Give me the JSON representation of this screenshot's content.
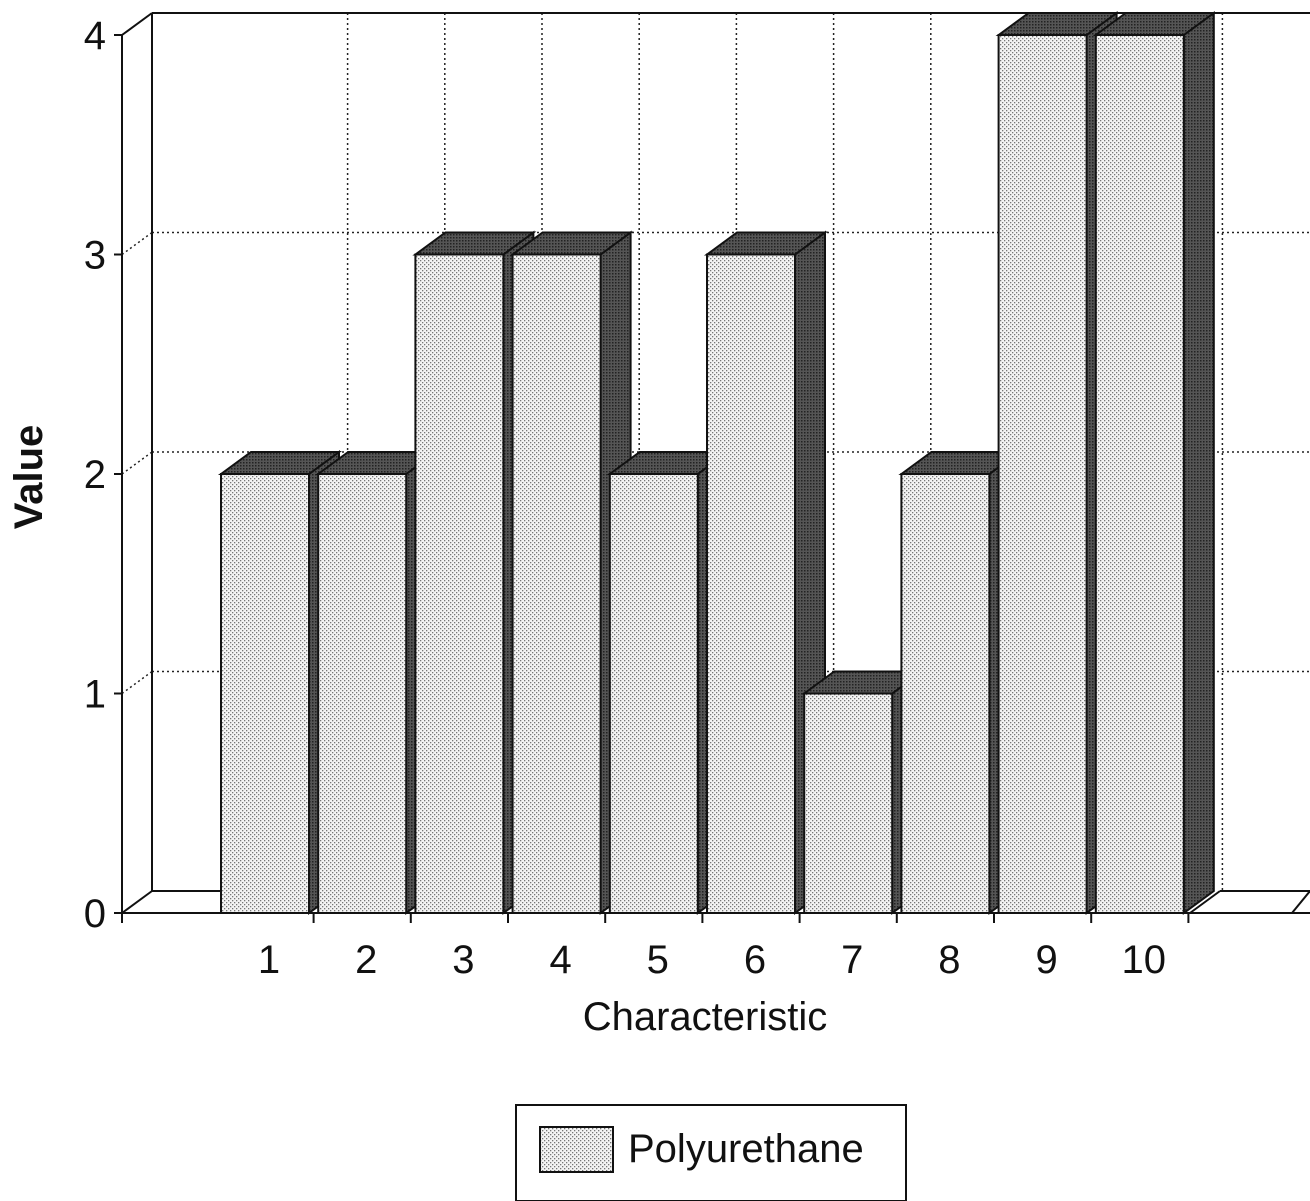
{
  "chart_data": {
    "type": "bar",
    "title": "",
    "xlabel": "Characteristic",
    "ylabel": "Value",
    "categories": [
      "1",
      "2",
      "3",
      "4",
      "5",
      "6",
      "7",
      "8",
      "9",
      "10"
    ],
    "series": [
      {
        "name": "Polyurethane",
        "values": [
          2,
          2,
          3,
          3,
          2,
          3,
          1,
          2,
          4,
          4
        ]
      }
    ],
    "ylim": [
      0,
      4
    ],
    "yticks": [
      "0",
      "1",
      "2",
      "3",
      "4"
    ],
    "grid": true,
    "legend_position": "bottom-center",
    "style": "3d-bar"
  }
}
